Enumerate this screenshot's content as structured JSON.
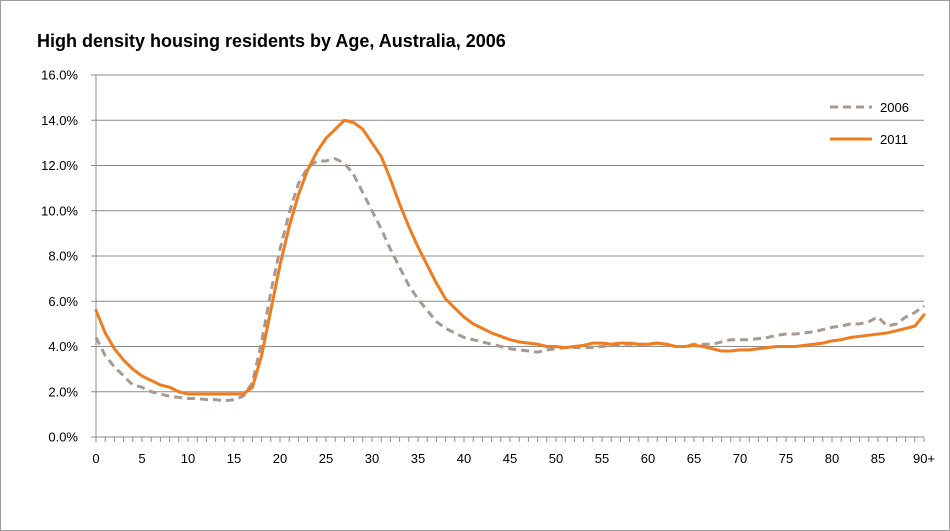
{
  "chart_data": {
    "type": "line",
    "title": "High density housing residents by Age, Australia, 2006",
    "xlabel": "",
    "ylabel": "",
    "x_ticks": [
      "0",
      "5",
      "10",
      "15",
      "20",
      "25",
      "30",
      "35",
      "40",
      "45",
      "50",
      "55",
      "60",
      "65",
      "70",
      "75",
      "80",
      "85",
      "90+"
    ],
    "y_ticks": [
      "0.0%",
      "2.0%",
      "4.0%",
      "6.0%",
      "8.0%",
      "10.0%",
      "12.0%",
      "14.0%",
      "16.0%"
    ],
    "xlim": [
      0,
      90
    ],
    "ylim": [
      0,
      16
    ],
    "grid": "horizontal",
    "legend_position": "top-right",
    "series": [
      {
        "name": "2006",
        "color": "#a89a8f",
        "dash": true,
        "x": [
          0,
          1,
          2,
          3,
          4,
          5,
          6,
          7,
          8,
          9,
          10,
          11,
          12,
          13,
          14,
          15,
          16,
          17,
          18,
          19,
          20,
          21,
          22,
          23,
          24,
          25,
          26,
          27,
          28,
          29,
          30,
          31,
          32,
          33,
          34,
          35,
          36,
          37,
          38,
          39,
          40,
          41,
          42,
          43,
          44,
          45,
          46,
          47,
          48,
          49,
          50,
          51,
          52,
          53,
          54,
          55,
          56,
          57,
          58,
          59,
          60,
          61,
          62,
          63,
          64,
          65,
          66,
          67,
          68,
          69,
          70,
          71,
          72,
          73,
          74,
          75,
          76,
          77,
          78,
          79,
          80,
          81,
          82,
          83,
          84,
          85,
          86,
          87,
          88,
          89,
          90
        ],
        "values": [
          4.4,
          3.6,
          3.1,
          2.7,
          2.3,
          2.2,
          2.0,
          1.9,
          1.8,
          1.75,
          1.7,
          1.7,
          1.65,
          1.65,
          1.6,
          1.65,
          1.8,
          2.4,
          4.2,
          6.4,
          8.3,
          9.9,
          11.2,
          11.9,
          12.2,
          12.2,
          12.3,
          12.1,
          11.6,
          10.8,
          10.0,
          9.2,
          8.3,
          7.5,
          6.7,
          6.1,
          5.6,
          5.1,
          4.8,
          4.6,
          4.4,
          4.3,
          4.2,
          4.1,
          4.0,
          3.9,
          3.85,
          3.8,
          3.75,
          3.85,
          3.9,
          3.95,
          3.95,
          3.95,
          3.95,
          4.0,
          4.05,
          4.1,
          4.1,
          4.1,
          4.1,
          4.15,
          4.1,
          4.0,
          4.0,
          4.1,
          4.1,
          4.1,
          4.2,
          4.3,
          4.3,
          4.3,
          4.35,
          4.4,
          4.5,
          4.55,
          4.55,
          4.6,
          4.65,
          4.75,
          4.85,
          4.9,
          5.0,
          5.0,
          5.1,
          5.3,
          4.9,
          5.0,
          5.3,
          5.5,
          5.8
        ]
      },
      {
        "name": "2011",
        "color": "#f07c1e",
        "dash": false,
        "x": [
          0,
          1,
          2,
          3,
          4,
          5,
          6,
          7,
          8,
          9,
          10,
          11,
          12,
          13,
          14,
          15,
          16,
          17,
          18,
          19,
          20,
          21,
          22,
          23,
          24,
          25,
          26,
          27,
          28,
          29,
          30,
          31,
          32,
          33,
          34,
          35,
          36,
          37,
          38,
          39,
          40,
          41,
          42,
          43,
          44,
          45,
          46,
          47,
          48,
          49,
          50,
          51,
          52,
          53,
          54,
          55,
          56,
          57,
          58,
          59,
          60,
          61,
          62,
          63,
          64,
          65,
          66,
          67,
          68,
          69,
          70,
          71,
          72,
          73,
          74,
          75,
          76,
          77,
          78,
          79,
          80,
          81,
          82,
          83,
          84,
          85,
          86,
          87,
          88,
          89,
          90
        ],
        "values": [
          5.6,
          4.6,
          3.9,
          3.4,
          3.0,
          2.7,
          2.5,
          2.3,
          2.2,
          2.0,
          1.9,
          1.9,
          1.9,
          1.9,
          1.9,
          1.9,
          1.9,
          2.2,
          3.6,
          5.6,
          7.6,
          9.3,
          10.7,
          11.8,
          12.6,
          13.2,
          13.6,
          14.0,
          13.9,
          13.6,
          13.0,
          12.4,
          11.4,
          10.3,
          9.3,
          8.4,
          7.6,
          6.8,
          6.1,
          5.7,
          5.3,
          5.0,
          4.8,
          4.6,
          4.45,
          4.3,
          4.2,
          4.15,
          4.1,
          4.0,
          4.0,
          3.95,
          4.0,
          4.05,
          4.15,
          4.15,
          4.1,
          4.15,
          4.15,
          4.1,
          4.1,
          4.15,
          4.1,
          4.0,
          4.0,
          4.05,
          4.0,
          3.9,
          3.8,
          3.8,
          3.85,
          3.85,
          3.9,
          3.95,
          4.0,
          4.0,
          4.0,
          4.05,
          4.1,
          4.15,
          4.25,
          4.3,
          4.4,
          4.45,
          4.5,
          4.55,
          4.6,
          4.7,
          4.8,
          4.9,
          5.4
        ]
      }
    ]
  }
}
